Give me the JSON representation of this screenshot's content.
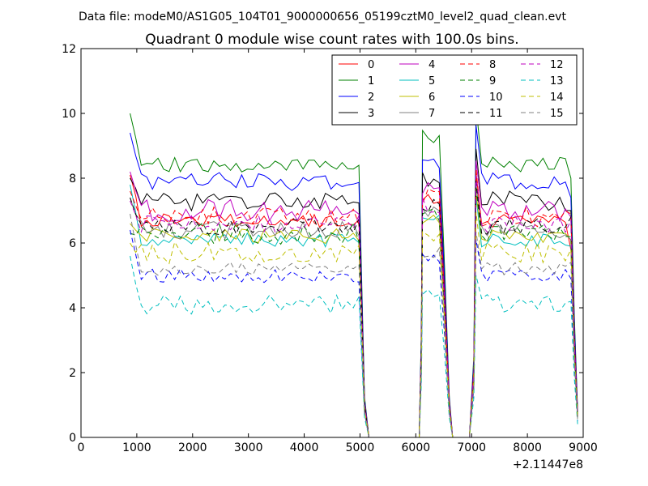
{
  "header": {
    "suptitle": "Data file: modeM0/AS1G05_104T01_9000000656_05199cztM0_level2_quad_clean.evt"
  },
  "chart_data": {
    "type": "line",
    "title": "Quadrant 0 module wise count rates with 100.0s bins.",
    "xlabel": "",
    "ylabel": "",
    "x_offset_label": "+2.11447e8",
    "xlim": [
      0,
      9000
    ],
    "ylim": [
      0,
      12
    ],
    "x_ticks": [
      0,
      1000,
      2000,
      3000,
      4000,
      5000,
      6000,
      7000,
      8000,
      9000
    ],
    "y_ticks": [
      0,
      2,
      4,
      6,
      8,
      10,
      12
    ],
    "grid": false,
    "legend": {
      "placement": "top-right",
      "columns": 4
    },
    "segments": [
      {
        "x_start": 880,
        "x_end": 5020,
        "step": 100
      },
      {
        "x_start": 6120,
        "x_end": 6420,
        "step": 100
      },
      {
        "x_start": 7080,
        "x_end": 8780,
        "step": 100
      }
    ],
    "series": [
      {
        "name": "0",
        "color": "#ff0000",
        "dash": "solid",
        "level": 6.7,
        "ends": [
          8.1,
          5.8
        ]
      },
      {
        "name": "1",
        "color": "#008000",
        "dash": "solid",
        "level": 8.4,
        "ends": [
          10.0,
          8.0
        ]
      },
      {
        "name": "2",
        "color": "#0000ff",
        "dash": "solid",
        "level": 7.9,
        "ends": [
          9.4,
          7.4
        ]
      },
      {
        "name": "3",
        "color": "#000000",
        "dash": "solid",
        "level": 7.3,
        "ends": [
          8.0,
          7.0
        ]
      },
      {
        "name": "4",
        "color": "#bf00bf",
        "dash": "solid",
        "level": 7.0,
        "ends": [
          8.2,
          6.8
        ]
      },
      {
        "name": "5",
        "color": "#00bfbf",
        "dash": "solid",
        "level": 6.1,
        "ends": [
          7.8,
          5.9
        ]
      },
      {
        "name": "6",
        "color": "#bfbf00",
        "dash": "solid",
        "level": 6.2,
        "ends": [
          6.6,
          6.1
        ]
      },
      {
        "name": "7",
        "color": "#808080",
        "dash": "solid",
        "level": 6.4,
        "ends": [
          7.4,
          6.1
        ]
      },
      {
        "name": "8",
        "color": "#ff0000",
        "dash": "dashed",
        "level": 6.8,
        "ends": [
          7.6,
          6.9
        ]
      },
      {
        "name": "9",
        "color": "#008000",
        "dash": "dashed",
        "level": 6.3,
        "ends": [
          6.3,
          6.2
        ]
      },
      {
        "name": "10",
        "color": "#0000ff",
        "dash": "dashed",
        "level": 5.0,
        "ends": [
          6.4,
          4.9
        ]
      },
      {
        "name": "11",
        "color": "#000000",
        "dash": "dashed",
        "level": 6.5,
        "ends": [
          7.4,
          6.8
        ]
      },
      {
        "name": "12",
        "color": "#bf00bf",
        "dash": "dashed",
        "level": 6.6,
        "ends": [
          7.3,
          6.7
        ]
      },
      {
        "name": "13",
        "color": "#00bfbf",
        "dash": "dashed",
        "level": 4.1,
        "ends": [
          5.6,
          4.2
        ]
      },
      {
        "name": "14",
        "color": "#bfbf00",
        "dash": "dashed",
        "level": 5.7,
        "ends": [
          6.0,
          5.8
        ]
      },
      {
        "name": "15",
        "color": "#808080",
        "dash": "dashed",
        "level": 5.2,
        "ends": [
          6.9,
          5.4
        ]
      }
    ]
  }
}
